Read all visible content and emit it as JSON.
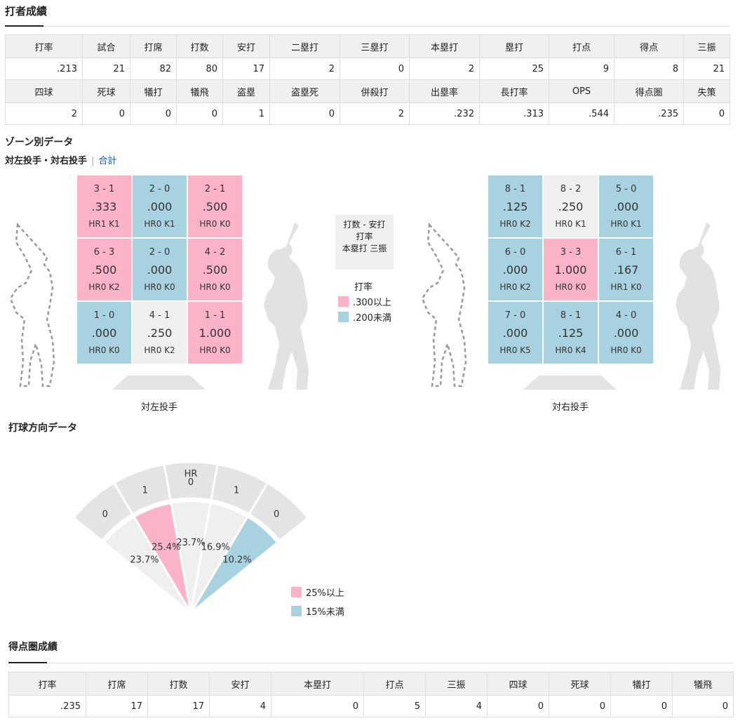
{
  "batting": {
    "title": "打者成績",
    "row1_headers": [
      "打率",
      "試合",
      "打席",
      "打数",
      "安打",
      "二塁打",
      "三塁打",
      "本塁打",
      "塁打",
      "打点",
      "得点",
      "三振"
    ],
    "row1_values": [
      ".213",
      "21",
      "82",
      "80",
      "17",
      "2",
      "0",
      "2",
      "25",
      "9",
      "8",
      "21"
    ],
    "row2_headers": [
      "四球",
      "死球",
      "犠打",
      "犠飛",
      "盗塁",
      "盗塁死",
      "併殺打",
      "出塁率",
      "長打率",
      "OPS",
      "得点圏",
      "失策"
    ],
    "row2_values": [
      "2",
      "0",
      "0",
      "0",
      "1",
      "0",
      "2",
      ".232",
      ".313",
      ".544",
      ".235",
      "0"
    ]
  },
  "zone": {
    "title": "ゾーン別データ",
    "subtitle": "対左投手・対右投手",
    "total_link": "合計",
    "left": {
      "caption": "対左投手",
      "cells": [
        {
          "ab_hits": "3 - 1",
          "avg": ".333",
          "hr_k": "HR1 K1",
          "color": "pink"
        },
        {
          "ab_hits": "2 - 0",
          "avg": ".000",
          "hr_k": "HR0 K1",
          "color": "blue"
        },
        {
          "ab_hits": "2 - 1",
          "avg": ".500",
          "hr_k": "HR0 K0",
          "color": "pink"
        },
        {
          "ab_hits": "6 - 3",
          "avg": ".500",
          "hr_k": "HR0 K2",
          "color": "pink"
        },
        {
          "ab_hits": "2 - 0",
          "avg": ".000",
          "hr_k": "HR0 K0",
          "color": "blue"
        },
        {
          "ab_hits": "4 - 2",
          "avg": ".500",
          "hr_k": "HR0 K0",
          "color": "pink"
        },
        {
          "ab_hits": "1 - 0",
          "avg": ".000",
          "hr_k": "HR0 K0",
          "color": "blue"
        },
        {
          "ab_hits": "4 - 1",
          "avg": ".250",
          "hr_k": "HR0 K2",
          "color": "gray"
        },
        {
          "ab_hits": "1 - 1",
          "avg": "1.000",
          "hr_k": "HR0 K0",
          "color": "pink"
        }
      ]
    },
    "right": {
      "caption": "対右投手",
      "cells": [
        {
          "ab_hits": "8 - 1",
          "avg": ".125",
          "hr_k": "HR0 K2",
          "color": "blue"
        },
        {
          "ab_hits": "8 - 2",
          "avg": ".250",
          "hr_k": "HR0 K1",
          "color": "gray"
        },
        {
          "ab_hits": "5 - 0",
          "avg": ".000",
          "hr_k": "HR0 K1",
          "color": "blue"
        },
        {
          "ab_hits": "6 - 0",
          "avg": ".000",
          "hr_k": "HR0 K2",
          "color": "blue"
        },
        {
          "ab_hits": "3 - 3",
          "avg": "1.000",
          "hr_k": "HR0 K0",
          "color": "pink"
        },
        {
          "ab_hits": "6 - 1",
          "avg": ".167",
          "hr_k": "HR1 K0",
          "color": "blue"
        },
        {
          "ab_hits": "7 - 0",
          "avg": ".000",
          "hr_k": "HR0 K5",
          "color": "blue"
        },
        {
          "ab_hits": "8 - 1",
          "avg": ".125",
          "hr_k": "HR0 K4",
          "color": "blue"
        },
        {
          "ab_hits": "4 - 0",
          "avg": ".000",
          "hr_k": "HR0 K0",
          "color": "blue"
        }
      ]
    },
    "key": {
      "line1": "打数 - 安打",
      "line2": "打率",
      "line3": "本塁打 三振"
    },
    "legend_title": "打率",
    "legend_pink": ".300以上",
    "legend_blue": ".200未満"
  },
  "direction": {
    "title": "打球方向データ",
    "hr_label": "HR",
    "hr_counts": [
      "0",
      "1",
      "0",
      "1",
      "0"
    ],
    "percents": [
      "23.7%",
      "25.4%",
      "23.7%",
      "16.9%",
      "10.2%"
    ],
    "colors": [
      "gray",
      "pink",
      "gray",
      "gray",
      "blue"
    ],
    "legend_pink": "25%以上",
    "legend_blue": "15%未満"
  },
  "scoring": {
    "title": "得点圏成績",
    "headers": [
      "打率",
      "打席",
      "打数",
      "安打",
      "本塁打",
      "打点",
      "三振",
      "四球",
      "死球",
      "犠打",
      "犠飛"
    ],
    "values": [
      ".235",
      "17",
      "17",
      "4",
      "0",
      "5",
      "4",
      "0",
      "0",
      "0",
      "0"
    ]
  },
  "colors": {
    "pink": "#fbb3c8",
    "blue": "#a9d2e0",
    "gray": "#efefef"
  }
}
